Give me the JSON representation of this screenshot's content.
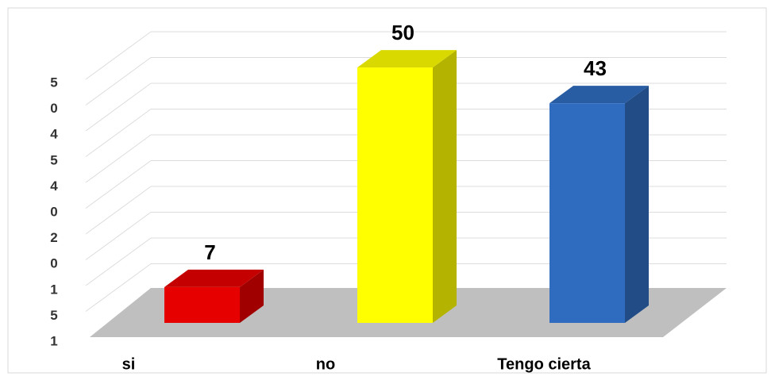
{
  "chart_data": {
    "type": "bar3d",
    "categories": [
      "si",
      "no",
      "Tengo cierta"
    ],
    "values": [
      7,
      50,
      43
    ],
    "colors": [
      "#e60000",
      "#ffff00",
      "#2f6cc0"
    ],
    "y_axis_text": [
      "5",
      "0",
      "4",
      "5",
      "4",
      "0",
      "2",
      "0",
      "1",
      "5",
      "1"
    ],
    "ylim": [
      0,
      57
    ]
  }
}
